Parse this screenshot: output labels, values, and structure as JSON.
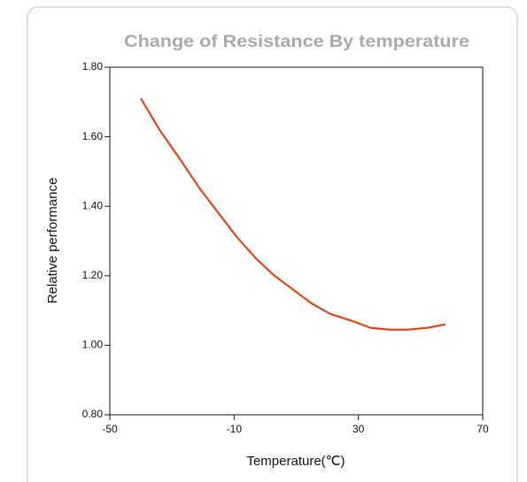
{
  "chart_data": {
    "type": "line",
    "title": "Change of  Resistance  By temperature",
    "x_label": "Temperature(℃)",
    "y_label": "Relative performance",
    "x": [
      -40,
      -34,
      -27,
      -21,
      -15,
      -9,
      -3,
      3,
      9,
      15,
      21,
      28,
      34,
      40,
      46,
      52,
      58
    ],
    "series": [
      {
        "name": "Relative performance",
        "color": "#e0461e",
        "values": [
          1.71,
          1.62,
          1.53,
          1.45,
          1.38,
          1.31,
          1.25,
          1.2,
          1.16,
          1.12,
          1.09,
          1.07,
          1.05,
          1.045,
          1.045,
          1.05,
          1.06
        ]
      }
    ],
    "xlim": [
      -50,
      70
    ],
    "xticks": [
      -50,
      -10,
      30,
      70
    ],
    "ylim": [
      0.8,
      1.8
    ],
    "yticks": [
      {
        "value": 0.8,
        "label": "0.80"
      },
      {
        "value": 1.0,
        "label": "1.00"
      },
      {
        "value": 1.2,
        "label": "1.20"
      },
      {
        "value": 1.4,
        "label": "1.40"
      },
      {
        "value": 1.6,
        "label": "1.60"
      },
      {
        "value": 1.8,
        "label": "1.80"
      }
    ]
  }
}
